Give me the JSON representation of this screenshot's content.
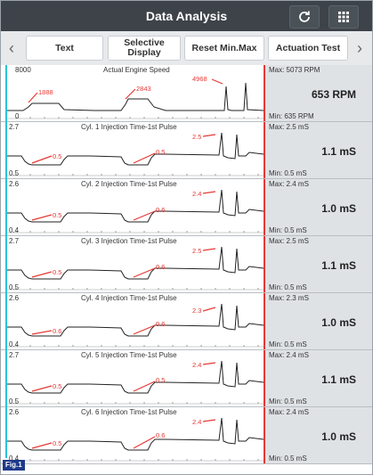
{
  "header": {
    "title": "Data Analysis",
    "refresh_icon": "refresh-icon",
    "grid_icon": "grid-icon"
  },
  "toolbar": {
    "prev_icon": "chevron-left-icon",
    "next_icon": "chevron-right-icon",
    "buttons": {
      "text": "Text",
      "selective_display": "Selective Display",
      "reset_min_max": "Reset Min.Max",
      "actuation_test": "Actuation Test"
    }
  },
  "panels": [
    {
      "title": "Actual Engine Speed",
      "y_max_label": "8000",
      "y_min_label": "0",
      "max_text": "Max: 5073 RPM",
      "min_text": "Min: 635 RPM",
      "current_text": "653 RPM",
      "annotations": [
        "1888",
        "2843",
        "4968"
      ]
    },
    {
      "title": "Cyl. 1 Injection Time-1st Pulse",
      "y_max_label": "2.7",
      "y_min_label": "0.5",
      "max_text": "Max: 2.5 mS",
      "min_text": "Min: 0.5 mS",
      "current_text": "1.1 mS",
      "annotations": [
        "0.5",
        "0.5",
        "2.5"
      ]
    },
    {
      "title": "Cyl. 2 Injection Time-1st Pulse",
      "y_max_label": "2.6",
      "y_min_label": "0.4",
      "max_text": "Max: 2.4 mS",
      "min_text": "Min: 0.5 mS",
      "current_text": "1.0 mS",
      "annotations": [
        "0.5",
        "0.6",
        "2.4"
      ]
    },
    {
      "title": "Cyl. 3 Injection Time-1st Pulse",
      "y_max_label": "2.7",
      "y_min_label": "0.5",
      "max_text": "Max: 2.5 mS",
      "min_text": "Min: 0.5 mS",
      "current_text": "1.1 mS",
      "annotations": [
        "0.5",
        "0.6",
        "2.5"
      ]
    },
    {
      "title": "Cyl. 4 Injection Time-1st Pulse",
      "y_max_label": "2.6",
      "y_min_label": "0.4",
      "max_text": "Max: 2.3 mS",
      "min_text": "Min: 0.5 mS",
      "current_text": "1.0 mS",
      "annotations": [
        "0.6",
        "0.6",
        "2.3"
      ]
    },
    {
      "title": "Cyl. 5 Injection Time-1st Pulse",
      "y_max_label": "2.7",
      "y_min_label": "0.5",
      "max_text": "Max: 2.4 mS",
      "min_text": "Min: 0.5 mS",
      "current_text": "1.1 mS",
      "annotations": [
        "0.5",
        "0.5",
        "2.4"
      ]
    },
    {
      "title": "Cyl. 6 Injection Time-1st Pulse",
      "y_max_label": "2.6",
      "y_min_label": "0.4",
      "max_text": "Max: 2.4 mS",
      "min_text": "Min: 0.5 mS",
      "current_text": "1.0 mS",
      "annotations": [
        "0.5",
        "0.6",
        "2.4"
      ]
    }
  ],
  "figure_label": "Fig.1",
  "colors": {
    "header_bg": "#3d4349",
    "cursor_right": "#e53935",
    "cursor_left": "#26c6da",
    "annotation": "#e53935",
    "figure_label_bg": "#1f3a8a"
  }
}
